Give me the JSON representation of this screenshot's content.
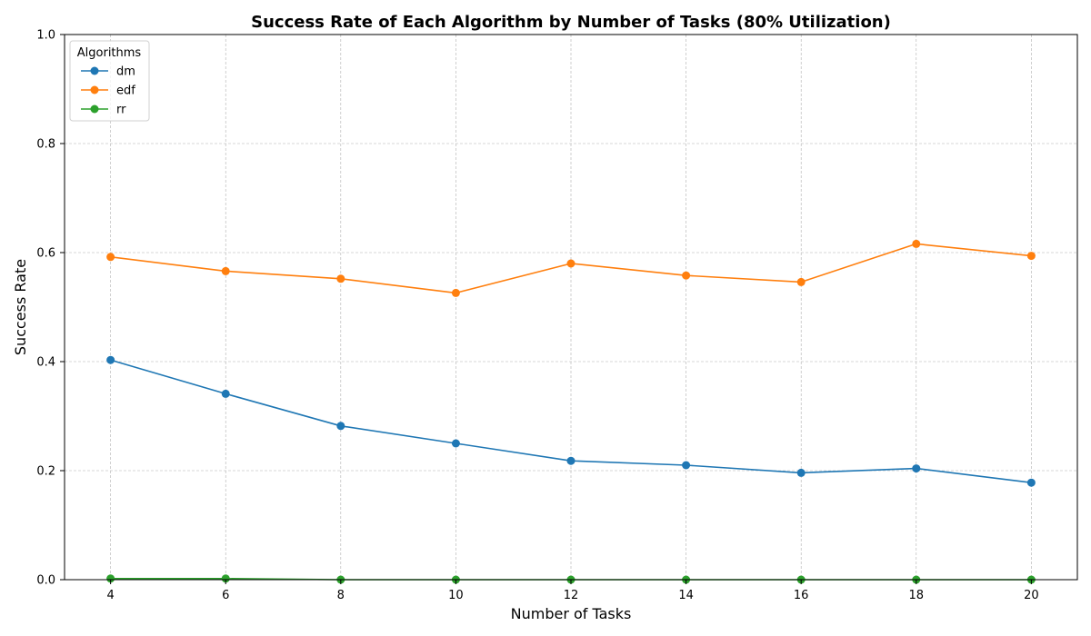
{
  "chart_data": {
    "type": "line",
    "title": "Success Rate of Each Algorithm by Number of Tasks (80% Utilization)",
    "xlabel": "Number of Tasks",
    "ylabel": "Success Rate",
    "x": [
      4,
      6,
      8,
      10,
      12,
      14,
      16,
      18,
      20
    ],
    "xticks": [
      "4",
      "6",
      "8",
      "10",
      "12",
      "14",
      "16",
      "18",
      "20"
    ],
    "yticks": [
      "0.0",
      "0.2",
      "0.4",
      "0.6",
      "0.8",
      "1.0"
    ],
    "ytick_values": [
      0.0,
      0.2,
      0.4,
      0.6,
      0.8,
      1.0
    ],
    "xlim": [
      3.2,
      20.8
    ],
    "ylim": [
      0.0,
      1.0
    ],
    "grid": true,
    "legend": {
      "title": "Algorithms",
      "placement": "top-left"
    },
    "series": [
      {
        "name": "dm",
        "color": "#1f77b4",
        "values": [
          0.403,
          0.341,
          0.282,
          0.25,
          0.218,
          0.21,
          0.196,
          0.204,
          0.178
        ]
      },
      {
        "name": "edf",
        "color": "#ff7f0e",
        "values": [
          0.592,
          0.566,
          0.552,
          0.526,
          0.58,
          0.558,
          0.546,
          0.616,
          0.594
        ]
      },
      {
        "name": "rr",
        "color": "#2ca02c",
        "values": [
          0.002,
          0.002,
          0.0,
          0.0,
          0.0,
          0.0,
          0.0,
          0.0,
          0.0
        ]
      }
    ]
  }
}
